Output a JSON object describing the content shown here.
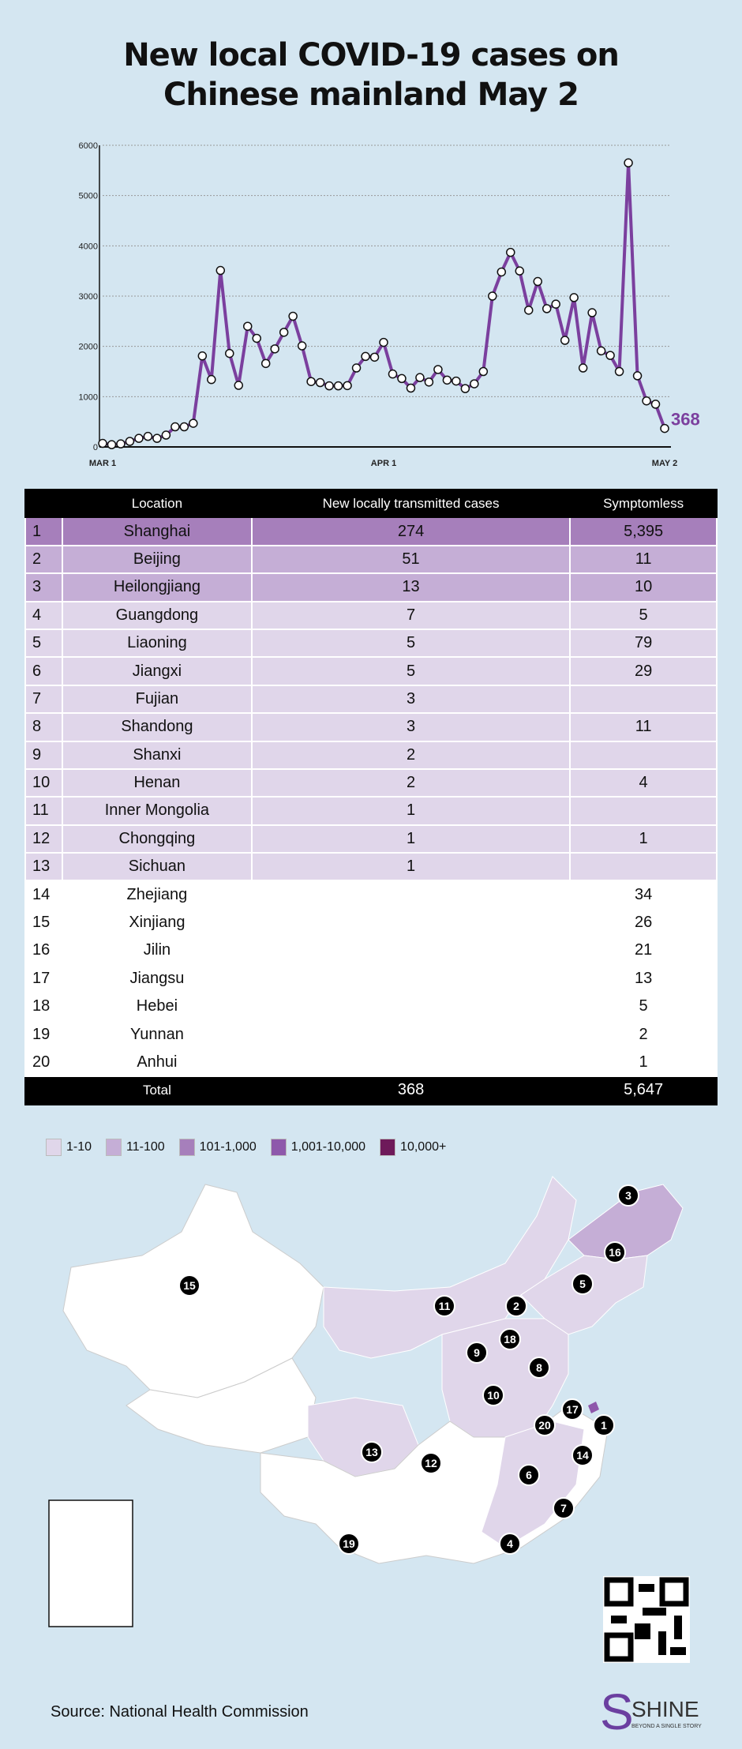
{
  "title_line1": "New local COVID-19 cases on",
  "title_line2": "Chinese mainland  May 2",
  "chart_data": {
    "type": "line",
    "title": "New local COVID-19 cases on Chinese mainland  May 2",
    "x_start": "2022-03-01",
    "x_end": "2022-05-02",
    "x_tick_labels": [
      "MAR 1",
      "APR 1",
      "MAY 2"
    ],
    "y_ticks": [
      0,
      1000,
      2000,
      3000,
      4000,
      5000,
      6000
    ],
    "ylim": [
      0,
      6000
    ],
    "grid": "horizontal dotted",
    "line_color": "#7b3f9e",
    "end_label": "368",
    "values": [
      70,
      45,
      60,
      110,
      170,
      210,
      170,
      235,
      400,
      400,
      470,
      1810,
      1340,
      3510,
      1860,
      1225,
      2400,
      2160,
      1660,
      1950,
      2280,
      2600,
      2010,
      1300,
      1280,
      1215,
      1215,
      1220,
      1570,
      1800,
      1785,
      2080,
      1450,
      1360,
      1170,
      1380,
      1290,
      1540,
      1330,
      1310,
      1160,
      1255,
      1500,
      3000,
      3480,
      3870,
      3500,
      2720,
      3290,
      2750,
      2840,
      2120,
      2970,
      1570,
      2670,
      1910,
      1820,
      1500,
      5650,
      1415,
      915,
      850,
      368
    ]
  },
  "table": {
    "headers": [
      "Location",
      "New locally transmitted cases",
      "Symptomless"
    ],
    "rows": [
      {
        "rank": "1",
        "loc": "Shanghai",
        "cases": "274",
        "sym": "5,395",
        "color": "#a67fbb"
      },
      {
        "rank": "2",
        "loc": "Beijing",
        "cases": "51",
        "sym": "11",
        "color": "#c5aed6"
      },
      {
        "rank": "3",
        "loc": "Heilongjiang",
        "cases": "13",
        "sym": "10",
        "color": "#c5aed6"
      },
      {
        "rank": "4",
        "loc": "Guangdong",
        "cases": "7",
        "sym": "5",
        "color": "#e0d6ea"
      },
      {
        "rank": "5",
        "loc": "Liaoning",
        "cases": "5",
        "sym": "79",
        "color": "#e0d6ea"
      },
      {
        "rank": "6",
        "loc": "Jiangxi",
        "cases": "5",
        "sym": "29",
        "color": "#e0d6ea"
      },
      {
        "rank": "7",
        "loc": "Fujian",
        "cases": "3",
        "sym": "",
        "color": "#e0d6ea"
      },
      {
        "rank": "8",
        "loc": "Shandong",
        "cases": "3",
        "sym": "11",
        "color": "#e0d6ea"
      },
      {
        "rank": "9",
        "loc": "Shanxi",
        "cases": "2",
        "sym": "",
        "color": "#e0d6ea"
      },
      {
        "rank": "10",
        "loc": "Henan",
        "cases": "2",
        "sym": "4",
        "color": "#e0d6ea"
      },
      {
        "rank": "11",
        "loc": "Inner Mongolia",
        "cases": "1",
        "sym": "",
        "color": "#e0d6ea"
      },
      {
        "rank": "12",
        "loc": "Chongqing",
        "cases": "1",
        "sym": "1",
        "color": "#e0d6ea"
      },
      {
        "rank": "13",
        "loc": "Sichuan",
        "cases": "1",
        "sym": "",
        "color": "#e0d6ea"
      },
      {
        "rank": "14",
        "loc": "Zhejiang",
        "cases": "",
        "sym": "34",
        "color": "#ffffff"
      },
      {
        "rank": "15",
        "loc": "Xinjiang",
        "cases": "",
        "sym": "26",
        "color": "#ffffff"
      },
      {
        "rank": "16",
        "loc": "Jilin",
        "cases": "",
        "sym": "21",
        "color": "#ffffff"
      },
      {
        "rank": "17",
        "loc": "Jiangsu",
        "cases": "",
        "sym": "13",
        "color": "#ffffff"
      },
      {
        "rank": "18",
        "loc": "Hebei",
        "cases": "",
        "sym": "5",
        "color": "#ffffff"
      },
      {
        "rank": "19",
        "loc": "Yunnan",
        "cases": "",
        "sym": "2",
        "color": "#ffffff"
      },
      {
        "rank": "20",
        "loc": "Anhui",
        "cases": "",
        "sym": "1",
        "color": "#ffffff"
      }
    ],
    "total": {
      "label": "Total",
      "cases": "368",
      "sym": "5,647"
    }
  },
  "legend": [
    {
      "label": "1-10",
      "color": "#e0d6ea"
    },
    {
      "label": "11-100",
      "color": "#c5aed6"
    },
    {
      "label": "101-1,000",
      "color": "#a67fbb"
    },
    {
      "label": "1,001-10,000",
      "color": "#8e58ab"
    },
    {
      "label": "10,000+",
      "color": "#6e1a5a"
    }
  ],
  "map": {
    "markers": [
      "1",
      "2",
      "3",
      "4",
      "5",
      "6",
      "7",
      "8",
      "9",
      "10",
      "11",
      "12",
      "13",
      "14",
      "15",
      "16",
      "17",
      "18",
      "19",
      "20"
    ]
  },
  "source": "Source: National Health Commission",
  "logo": {
    "name": "SHINE",
    "tagline": "BEYOND A SINGLE STORY"
  }
}
